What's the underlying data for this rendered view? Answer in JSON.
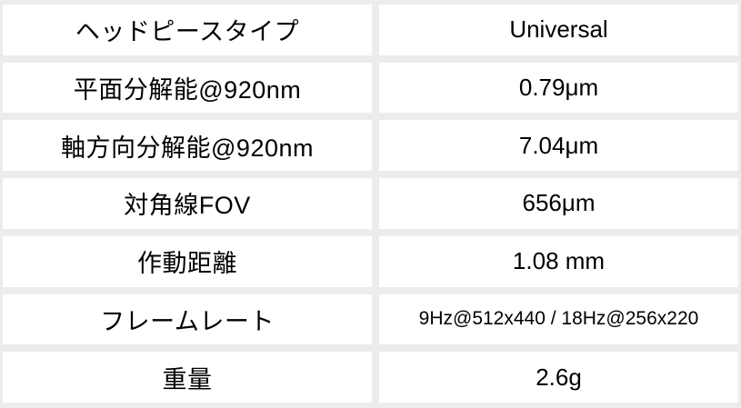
{
  "colors": {
    "background": "#ececec",
    "cell_background": "#ffffff",
    "text": "#000000"
  },
  "table": {
    "rows": [
      {
        "label": "ヘッドピースタイプ",
        "value": "Universal"
      },
      {
        "label": "平面分解能@920nm",
        "value": "0.79μm"
      },
      {
        "label": "軸方向分解能@920nm",
        "value": "7.04μm"
      },
      {
        "label": "対角線FOV",
        "value": "656μm"
      },
      {
        "label": "作動距離",
        "value": "1.08 mm"
      },
      {
        "label": "フレームレート",
        "value": "9Hz@512x440 / 18Hz@256x220"
      },
      {
        "label": "重量",
        "value": "2.6g"
      }
    ]
  },
  "chart_data": {
    "type": "table",
    "rows": [
      [
        "ヘッドピースタイプ",
        "Universal"
      ],
      [
        "平面分解能@920nm",
        "0.79μm"
      ],
      [
        "軸方向分解能@920nm",
        "7.04μm"
      ],
      [
        "対角線FOV",
        "656μm"
      ],
      [
        "作動距離",
        "1.08 mm"
      ],
      [
        "フレームレート",
        "9Hz@512x440 / 18Hz@256x220"
      ],
      [
        "重量",
        "2.6g"
      ]
    ]
  }
}
